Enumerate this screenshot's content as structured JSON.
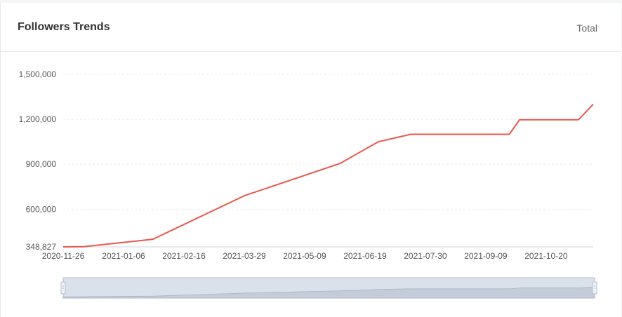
{
  "header": {
    "title": "Followers Trends",
    "filter_label": "Total"
  },
  "colors": {
    "line": "#e8594a",
    "grid": "#e9ebee",
    "axis": "#cfd3d8",
    "slider_fill": "#dbe1ea",
    "slider_border": "#b3bfd0",
    "slider_area": "#c3ccd8"
  },
  "chart_data": {
    "type": "line",
    "title": "Followers Trends",
    "xlabel": "",
    "ylabel": "",
    "x_type": "date",
    "xlim": [
      "2020-11-26",
      "2021-11-21"
    ],
    "ylim": [
      348827,
      1500000
    ],
    "y_ticks": [
      348827,
      600000,
      900000,
      1200000,
      1500000
    ],
    "y_tick_labels": [
      "348,827",
      "600,000",
      "900,000",
      "1,200,000",
      "1,500,000"
    ],
    "x_ticks": [
      "2020-11-26",
      "2021-01-06",
      "2021-02-16",
      "2021-03-29",
      "2021-05-09",
      "2021-06-19",
      "2021-07-30",
      "2021-09-09",
      "2021-10-20"
    ],
    "grid": true,
    "legend": "none",
    "series": [
      {
        "points": [
          {
            "x": "2020-11-26",
            "y": 348827
          },
          {
            "x": "2020-12-10",
            "y": 350000
          },
          {
            "x": "2021-01-26",
            "y": 400000
          },
          {
            "x": "2021-03-29",
            "y": 690000
          },
          {
            "x": "2021-06-02",
            "y": 905000
          },
          {
            "x": "2021-06-28",
            "y": 1050000
          },
          {
            "x": "2021-07-20",
            "y": 1100000
          },
          {
            "x": "2021-09-25",
            "y": 1100000
          },
          {
            "x": "2021-10-02",
            "y": 1197000
          },
          {
            "x": "2021-11-11",
            "y": 1197000
          },
          {
            "x": "2021-11-21",
            "y": 1300000
          }
        ]
      }
    ]
  }
}
